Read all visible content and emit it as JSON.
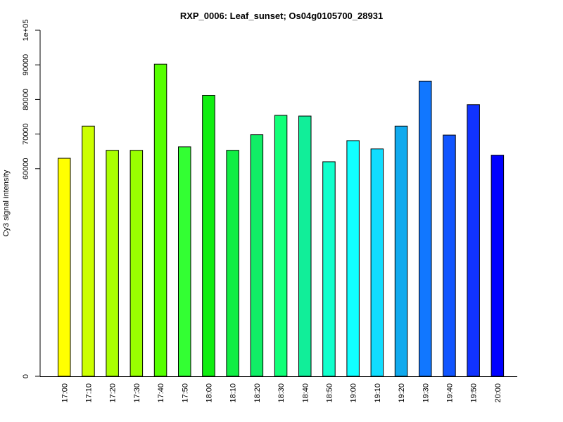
{
  "chart_data": {
    "type": "bar",
    "title": "RXP_0006: Leaf_sunset; Os04g0105700_28931",
    "xlabel": "",
    "ylabel": "Cy3 signal intensity",
    "categories": [
      "17:00",
      "17:10",
      "17:20",
      "17:30",
      "17:40",
      "17:50",
      "18:00",
      "18:10",
      "18:20",
      "18:30",
      "18:40",
      "18:50",
      "19:00",
      "19:10",
      "19:20",
      "19:30",
      "19:40",
      "19:50",
      "20:00"
    ],
    "values": [
      63000,
      72300,
      65300,
      65300,
      90200,
      66300,
      81200,
      65300,
      69800,
      75400,
      75200,
      62000,
      68100,
      65700,
      72300,
      85300,
      69700,
      78500,
      63900
    ],
    "colors": [
      "#ffff00",
      "#ccff00",
      "#aaff00",
      "#99ff00",
      "#55ff00",
      "#33ff33",
      "#11ee11",
      "#11ee44",
      "#11ee66",
      "#11ff77",
      "#11ee99",
      "#11ffcc",
      "#11ffff",
      "#11ddff",
      "#11aaee",
      "#1177ff",
      "#1155ff",
      "#1133ff",
      "#0000ff"
    ],
    "ylim": [
      0,
      100000
    ],
    "yticks": [
      0,
      60000,
      70000,
      80000,
      90000,
      100000
    ],
    "ytick_labels": [
      "0",
      "60000",
      "70000",
      "80000",
      "90000",
      "1e+05"
    ],
    "grid": false,
    "legend": "none"
  }
}
